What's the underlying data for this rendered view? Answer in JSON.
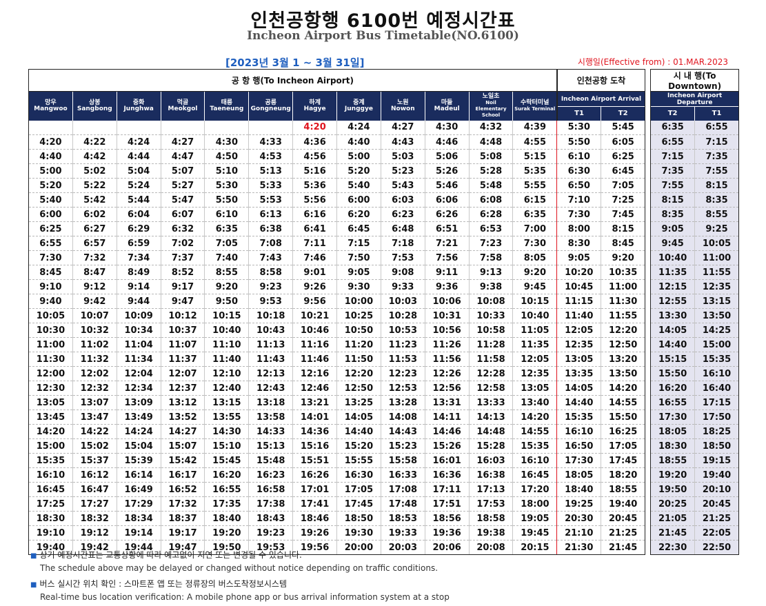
{
  "title_ko": "인천공항행 6100번 예정시간표",
  "title_en": "Incheon Airport Bus Timetable(NO.6100)",
  "period": "[2023년 3월 1 ~ 3월 31일]",
  "effective": "시행일(Effective from) : 01.MAR.2023",
  "groups": {
    "to_airport": "공 항 행(To Incheon Airport)",
    "arrival": "인천공항 도착",
    "downtown": "시 내 행(To Downtown)"
  },
  "stops": [
    {
      "ko": "망우",
      "en": "Mangwoo"
    },
    {
      "ko": "상봉",
      "en": "Sangbong"
    },
    {
      "ko": "중화",
      "en": "Junghwa"
    },
    {
      "ko": "먹골",
      "en": "Meokgol"
    },
    {
      "ko": "태릉",
      "en": "Taeneung"
    },
    {
      "ko": "공릉",
      "en": "Gongneung"
    },
    {
      "ko": "하계",
      "en": "Hagye"
    },
    {
      "ko": "중계",
      "en": "Junggye"
    },
    {
      "ko": "노원",
      "en": "Nowon"
    },
    {
      "ko": "마들",
      "en": "Madeul"
    },
    {
      "ko": "노일초",
      "en": "Noil Elementary School"
    },
    {
      "ko": "수락터미널",
      "en": "Surak Terminal"
    }
  ],
  "arrival_label": "Incheon Airport Arrival",
  "departure_label": "Incheon Airport Departure",
  "arrival_terminals": [
    "T1",
    "T2"
  ],
  "departure_terminals": [
    "T2",
    "T1"
  ],
  "rows": [
    [
      "",
      "",
      "",
      "",
      "",
      "",
      "4:20",
      "4:24",
      "4:27",
      "4:30",
      "4:32",
      "4:39",
      "5:30",
      "5:45",
      "6:35",
      "6:55"
    ],
    [
      "4:20",
      "4:22",
      "4:24",
      "4:27",
      "4:30",
      "4:33",
      "4:36",
      "4:40",
      "4:43",
      "4:46",
      "4:48",
      "4:55",
      "5:50",
      "6:05",
      "6:55",
      "7:15"
    ],
    [
      "4:40",
      "4:42",
      "4:44",
      "4:47",
      "4:50",
      "4:53",
      "4:56",
      "5:00",
      "5:03",
      "5:06",
      "5:08",
      "5:15",
      "6:10",
      "6:25",
      "7:15",
      "7:35"
    ],
    [
      "5:00",
      "5:02",
      "5:04",
      "5:07",
      "5:10",
      "5:13",
      "5:16",
      "5:20",
      "5:23",
      "5:26",
      "5:28",
      "5:35",
      "6:30",
      "6:45",
      "7:35",
      "7:55"
    ],
    [
      "5:20",
      "5:22",
      "5:24",
      "5:27",
      "5:30",
      "5:33",
      "5:36",
      "5:40",
      "5:43",
      "5:46",
      "5:48",
      "5:55",
      "6:50",
      "7:05",
      "7:55",
      "8:15"
    ],
    [
      "5:40",
      "5:42",
      "5:44",
      "5:47",
      "5:50",
      "5:53",
      "5:56",
      "6:00",
      "6:03",
      "6:06",
      "6:08",
      "6:15",
      "7:10",
      "7:25",
      "8:15",
      "8:35"
    ],
    [
      "6:00",
      "6:02",
      "6:04",
      "6:07",
      "6:10",
      "6:13",
      "6:16",
      "6:20",
      "6:23",
      "6:26",
      "6:28",
      "6:35",
      "7:30",
      "7:45",
      "8:35",
      "8:55"
    ],
    [
      "6:25",
      "6:27",
      "6:29",
      "6:32",
      "6:35",
      "6:38",
      "6:41",
      "6:45",
      "6:48",
      "6:51",
      "6:53",
      "7:00",
      "8:00",
      "8:15",
      "9:05",
      "9:25"
    ],
    [
      "6:55",
      "6:57",
      "6:59",
      "7:02",
      "7:05",
      "7:08",
      "7:11",
      "7:15",
      "7:18",
      "7:21",
      "7:23",
      "7:30",
      "8:30",
      "8:45",
      "9:45",
      "10:05"
    ],
    [
      "7:30",
      "7:32",
      "7:34",
      "7:37",
      "7:40",
      "7:43",
      "7:46",
      "7:50",
      "7:53",
      "7:56",
      "7:58",
      "8:05",
      "9:05",
      "9:20",
      "10:40",
      "11:00"
    ],
    [
      "8:45",
      "8:47",
      "8:49",
      "8:52",
      "8:55",
      "8:58",
      "9:01",
      "9:05",
      "9:08",
      "9:11",
      "9:13",
      "9:20",
      "10:20",
      "10:35",
      "11:35",
      "11:55"
    ],
    [
      "9:10",
      "9:12",
      "9:14",
      "9:17",
      "9:20",
      "9:23",
      "9:26",
      "9:30",
      "9:33",
      "9:36",
      "9:38",
      "9:45",
      "10:45",
      "11:00",
      "12:15",
      "12:35"
    ],
    [
      "9:40",
      "9:42",
      "9:44",
      "9:47",
      "9:50",
      "9:53",
      "9:56",
      "10:00",
      "10:03",
      "10:06",
      "10:08",
      "10:15",
      "11:15",
      "11:30",
      "12:55",
      "13:15"
    ],
    [
      "10:05",
      "10:07",
      "10:09",
      "10:12",
      "10:15",
      "10:18",
      "10:21",
      "10:25",
      "10:28",
      "10:31",
      "10:33",
      "10:40",
      "11:40",
      "11:55",
      "13:30",
      "13:50"
    ],
    [
      "10:30",
      "10:32",
      "10:34",
      "10:37",
      "10:40",
      "10:43",
      "10:46",
      "10:50",
      "10:53",
      "10:56",
      "10:58",
      "11:05",
      "12:05",
      "12:20",
      "14:05",
      "14:25"
    ],
    [
      "11:00",
      "11:02",
      "11:04",
      "11:07",
      "11:10",
      "11:13",
      "11:16",
      "11:20",
      "11:23",
      "11:26",
      "11:28",
      "11:35",
      "12:35",
      "12:50",
      "14:40",
      "15:00"
    ],
    [
      "11:30",
      "11:32",
      "11:34",
      "11:37",
      "11:40",
      "11:43",
      "11:46",
      "11:50",
      "11:53",
      "11:56",
      "11:58",
      "12:05",
      "13:05",
      "13:20",
      "15:15",
      "15:35"
    ],
    [
      "12:00",
      "12:02",
      "12:04",
      "12:07",
      "12:10",
      "12:13",
      "12:16",
      "12:20",
      "12:23",
      "12:26",
      "12:28",
      "12:35",
      "13:35",
      "13:50",
      "15:50",
      "16:10"
    ],
    [
      "12:30",
      "12:32",
      "12:34",
      "12:37",
      "12:40",
      "12:43",
      "12:46",
      "12:50",
      "12:53",
      "12:56",
      "12:58",
      "13:05",
      "14:05",
      "14:20",
      "16:20",
      "16:40"
    ],
    [
      "13:05",
      "13:07",
      "13:09",
      "13:12",
      "13:15",
      "13:18",
      "13:21",
      "13:25",
      "13:28",
      "13:31",
      "13:33",
      "13:40",
      "14:40",
      "14:55",
      "16:55",
      "17:15"
    ],
    [
      "13:45",
      "13:47",
      "13:49",
      "13:52",
      "13:55",
      "13:58",
      "14:01",
      "14:05",
      "14:08",
      "14:11",
      "14:13",
      "14:20",
      "15:35",
      "15:50",
      "17:30",
      "17:50"
    ],
    [
      "14:20",
      "14:22",
      "14:24",
      "14:27",
      "14:30",
      "14:33",
      "14:36",
      "14:40",
      "14:43",
      "14:46",
      "14:48",
      "14:55",
      "16:10",
      "16:25",
      "18:05",
      "18:25"
    ],
    [
      "15:00",
      "15:02",
      "15:04",
      "15:07",
      "15:10",
      "15:13",
      "15:16",
      "15:20",
      "15:23",
      "15:26",
      "15:28",
      "15:35",
      "16:50",
      "17:05",
      "18:30",
      "18:50"
    ],
    [
      "15:35",
      "15:37",
      "15:39",
      "15:42",
      "15:45",
      "15:48",
      "15:51",
      "15:55",
      "15:58",
      "16:01",
      "16:03",
      "16:10",
      "17:30",
      "17:45",
      "18:55",
      "19:15"
    ],
    [
      "16:10",
      "16:12",
      "16:14",
      "16:17",
      "16:20",
      "16:23",
      "16:26",
      "16:30",
      "16:33",
      "16:36",
      "16:38",
      "16:45",
      "18:05",
      "18:20",
      "19:20",
      "19:40"
    ],
    [
      "16:45",
      "16:47",
      "16:49",
      "16:52",
      "16:55",
      "16:58",
      "17:01",
      "17:05",
      "17:08",
      "17:11",
      "17:13",
      "17:20",
      "18:40",
      "18:55",
      "19:50",
      "20:10"
    ],
    [
      "17:25",
      "17:27",
      "17:29",
      "17:32",
      "17:35",
      "17:38",
      "17:41",
      "17:45",
      "17:48",
      "17:51",
      "17:53",
      "18:00",
      "19:25",
      "19:40",
      "20:25",
      "20:45"
    ],
    [
      "18:30",
      "18:32",
      "18:34",
      "18:37",
      "18:40",
      "18:43",
      "18:46",
      "18:50",
      "18:53",
      "18:56",
      "18:58",
      "19:05",
      "20:30",
      "20:45",
      "21:05",
      "21:25"
    ],
    [
      "19:10",
      "19:12",
      "19:14",
      "19:17",
      "19:20",
      "19:23",
      "19:26",
      "19:30",
      "19:33",
      "19:36",
      "19:38",
      "19:45",
      "21:10",
      "21:25",
      "21:45",
      "22:05"
    ],
    [
      "19:40",
      "19:42",
      "19:44",
      "19:47",
      "19:50",
      "19:53",
      "19:56",
      "20:00",
      "20:03",
      "20:06",
      "20:08",
      "20:15",
      "21:30",
      "21:45",
      "22:30",
      "22:50"
    ]
  ],
  "highlight_first_departure": "4:20",
  "notes": {
    "note1_ko": "상기 예정시간표는 교통상황에 따라 예고없이 지연 또는 변경될 수 있습니다.",
    "note1_en": "The schedule above may be delayed or changed without notice depending on traffic conditions.",
    "note2_ko": "버스 실시간 위치 확인 : 스마트폰 앱 또는 정류장의 버스도착정보시스템",
    "note2_en": "Real-time bus location verification: A mobile phone app or bus arrival information system at a stop"
  },
  "colors": {
    "header_navy": "#1a2c5e",
    "period_blue": "#1f5fbf",
    "accent_red": "#e0141e",
    "downtown_bg": "#e4e4f0"
  }
}
